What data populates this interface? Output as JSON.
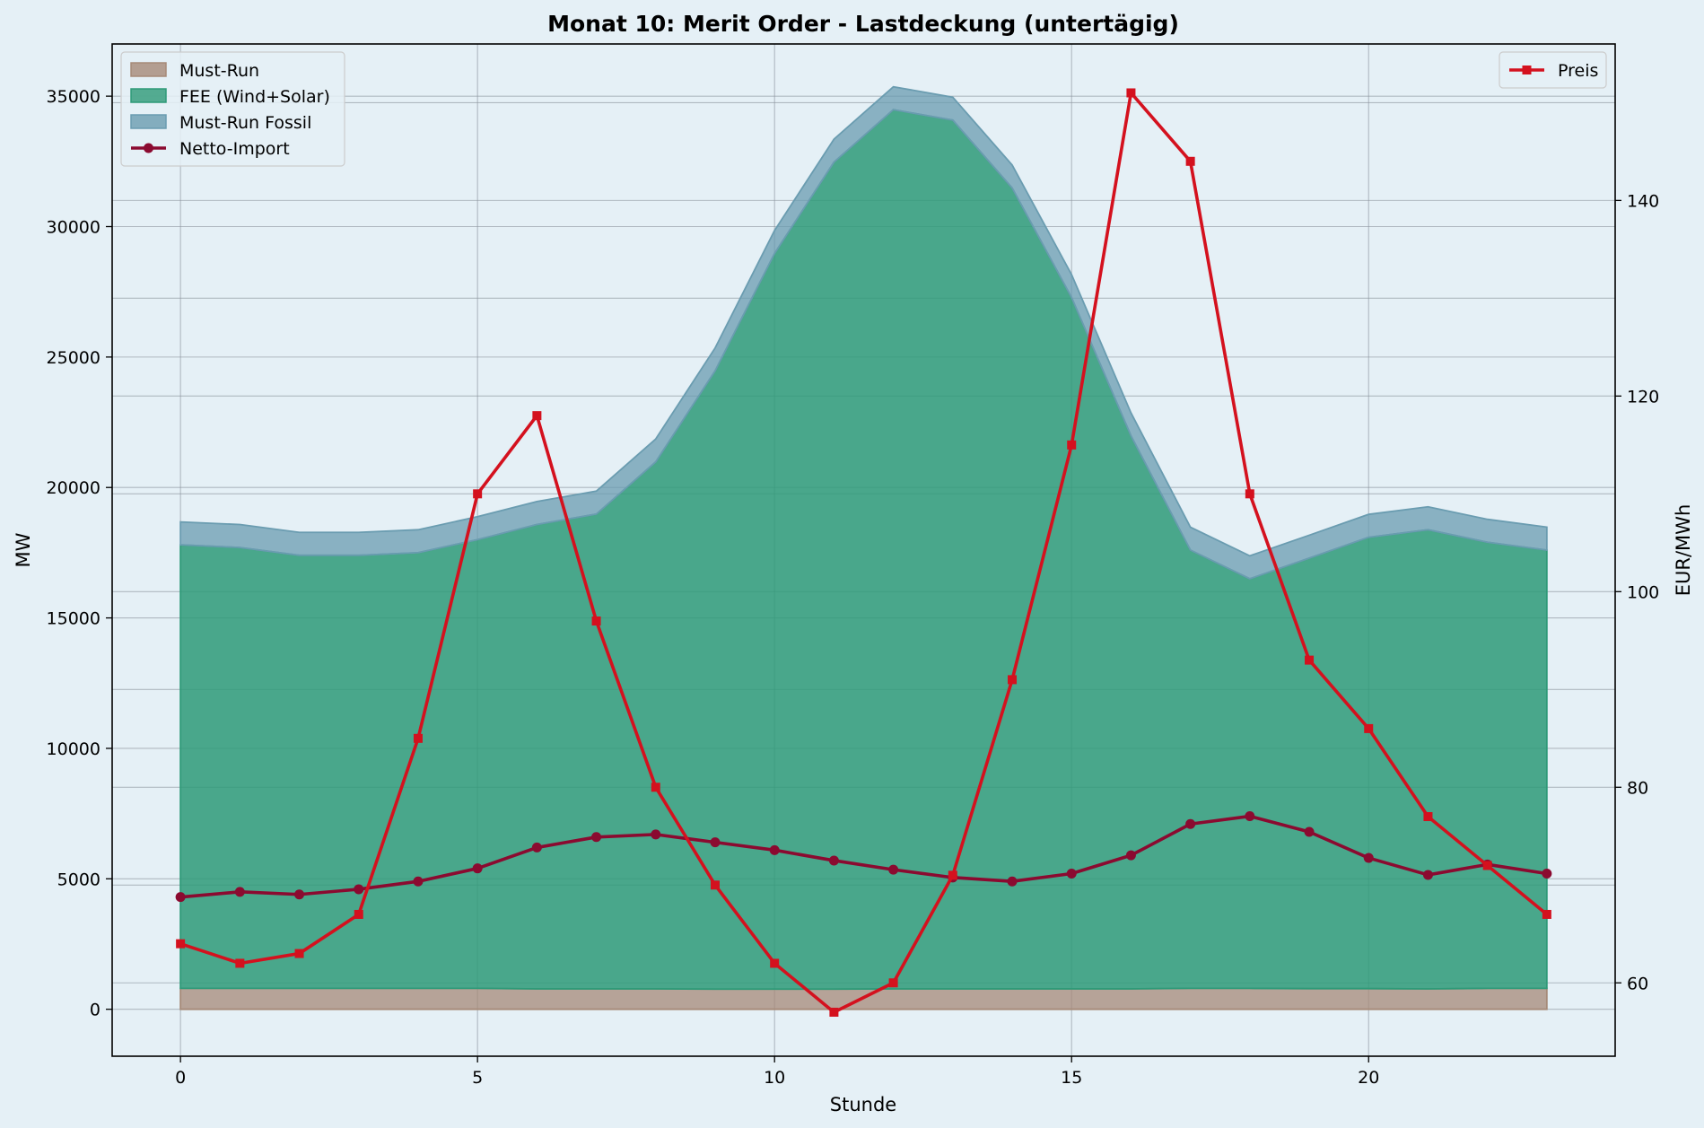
{
  "chart_data": {
    "type": "area",
    "title": "Monat 10: Merit Order - Lastdeckung (untertägig)",
    "xlabel": "Stunde",
    "ylabel": "MW",
    "ylabel_right": "EUR/MWh",
    "xlim": [
      -1.15,
      24.15
    ],
    "ylim": [
      -1800,
      37000
    ],
    "ylim_right": [
      52.5,
      156
    ],
    "x_ticks": [
      0,
      5,
      10,
      15,
      20
    ],
    "y_ticks": [
      0,
      5000,
      10000,
      15000,
      20000,
      25000,
      30000,
      35000
    ],
    "y_ticks_right": [
      60,
      80,
      100,
      120,
      140
    ],
    "grid": true,
    "x": [
      0,
      1,
      2,
      3,
      4,
      5,
      6,
      7,
      8,
      9,
      10,
      11,
      12,
      13,
      14,
      15,
      16,
      17,
      18,
      19,
      20,
      21,
      22,
      23
    ],
    "stacked_series": [
      {
        "name": "Must-Run",
        "color": "#a68a78",
        "values": [
          800,
          800,
          800,
          800,
          800,
          800,
          780,
          780,
          780,
          770,
          770,
          770,
          780,
          780,
          780,
          780,
          780,
          800,
          800,
          790,
          790,
          780,
          800,
          800
        ]
      },
      {
        "name": "FEE (Wind+Solar)",
        "color": "#2e9a78",
        "values": [
          17000,
          16900,
          16600,
          16600,
          16700,
          17200,
          17800,
          18200,
          20200,
          23700,
          28200,
          31700,
          33700,
          33300,
          30700,
          26500,
          21200,
          16800,
          15700,
          16500,
          17300,
          17600,
          17100,
          16800
        ]
      },
      {
        "name": "Must-Run Fossil",
        "color": "#6a9cb0",
        "values": [
          880,
          880,
          880,
          880,
          880,
          880,
          880,
          880,
          880,
          880,
          880,
          880,
          880,
          880,
          880,
          880,
          880,
          880,
          880,
          880,
          880,
          880,
          880,
          880
        ]
      }
    ],
    "line_series": [
      {
        "name": "Netto-Import",
        "axis": "left",
        "color": "#8b0a30",
        "marker": "circle",
        "values": [
          4300,
          4500,
          4400,
          4600,
          4900,
          5400,
          6200,
          6600,
          6700,
          6400,
          6100,
          5700,
          5350,
          5050,
          4900,
          5200,
          5900,
          7100,
          7400,
          6800,
          5800,
          5150,
          5550,
          5200
        ]
      },
      {
        "name": "Preis",
        "axis": "right",
        "color": "#d4111e",
        "marker": "square",
        "values": [
          64,
          62,
          63,
          67,
          85,
          110,
          118,
          97,
          80,
          70,
          62,
          57,
          60,
          71,
          91,
          115,
          151,
          144,
          110,
          93,
          86,
          77,
          72,
          67
        ]
      }
    ],
    "legend_left": {
      "placement": "upper-left",
      "entries": [
        "Must-Run",
        "FEE (Wind+Solar)",
        "Must-Run Fossil",
        "Netto-Import"
      ]
    },
    "legend_right": {
      "placement": "upper-right",
      "entries": [
        "Preis"
      ]
    }
  }
}
